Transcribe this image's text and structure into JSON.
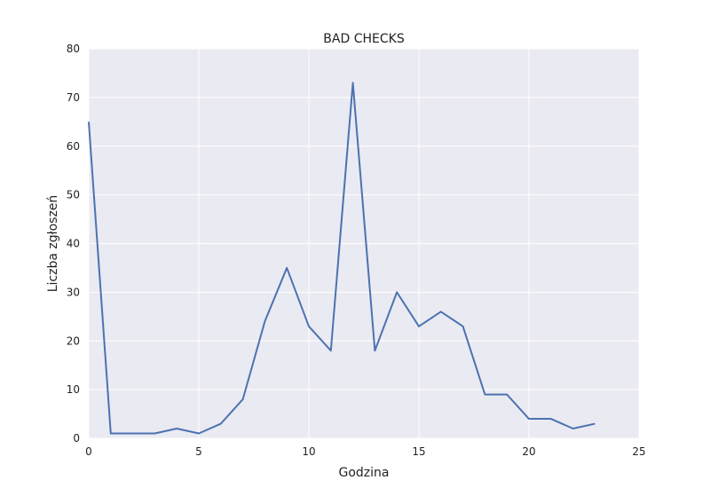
{
  "chart_data": {
    "type": "line",
    "title": "BAD CHECKS",
    "xlabel": "Godzina",
    "ylabel": "Liczba zgłoszeń",
    "xlim": [
      0,
      25
    ],
    "ylim": [
      0,
      80
    ],
    "xticks": [
      0,
      5,
      10,
      15,
      20,
      25
    ],
    "yticks": [
      0,
      10,
      20,
      30,
      40,
      50,
      60,
      70,
      80
    ],
    "grid": true,
    "series": [
      {
        "color": "#4c72b0",
        "x": [
          0,
          1,
          2,
          3,
          4,
          5,
          6,
          7,
          8,
          9,
          10,
          11,
          12,
          13,
          14,
          15,
          16,
          17,
          18,
          19,
          20,
          21,
          22,
          23
        ],
        "values": [
          65,
          1,
          1,
          1,
          2,
          1,
          3,
          8,
          24,
          35,
          23,
          18,
          73,
          18,
          30,
          23,
          26,
          23,
          9,
          9,
          4,
          4,
          2,
          3
        ]
      }
    ],
    "colors": {
      "plot_background": "#eaeaf2",
      "grid": "#ffffff",
      "line": "#4c72b0"
    }
  }
}
